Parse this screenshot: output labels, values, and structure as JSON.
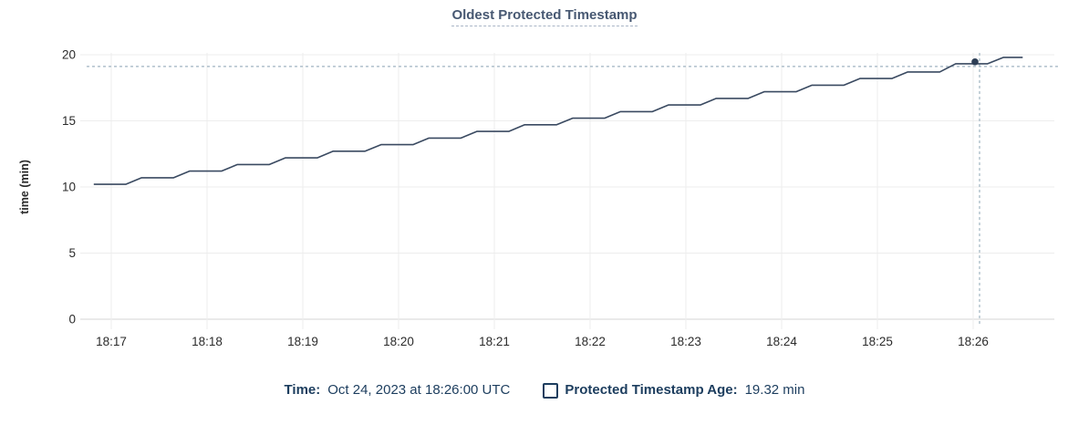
{
  "title": "Oldest Protected Timestamp",
  "tooltip": {
    "time_label": "Time:",
    "time_value": "Oct 24, 2023 at 18:26:00 UTC",
    "series_label": "Protected Timestamp Age:",
    "series_value": "19.32 min"
  },
  "colors": {
    "title": "#475872",
    "legend_text": "#1c3d5e",
    "line": "#3a4a61",
    "dot": "#2d3e55",
    "crosshair": "#9fb3c0",
    "grid": "#ededed",
    "axis": "#d6d6d6",
    "tick_text": "#2b2b2b",
    "axis_title_text": "#111111"
  },
  "chart_data": {
    "type": "line",
    "title": "Oldest Protected Timestamp",
    "xlabel": "",
    "ylabel": "time (min)",
    "ylim": [
      0,
      20
    ],
    "yticks": [
      0,
      5,
      10,
      15,
      20
    ],
    "xticks": [
      "18:17",
      "18:18",
      "18:19",
      "18:20",
      "18:21",
      "18:22",
      "18:23",
      "18:24",
      "18:25",
      "18:26"
    ],
    "x_range": [
      "18:16:41",
      "18:26:51"
    ],
    "grid": true,
    "legend_position": "bottom",
    "series": [
      {
        "name": "Protected Timestamp Age",
        "unit": "min",
        "points": [
          [
            "18:16:49",
            10.2
          ],
          [
            "18:17:09",
            10.2
          ],
          [
            "18:17:19",
            10.7
          ],
          [
            "18:17:39",
            10.7
          ],
          [
            "18:17:49",
            11.2
          ],
          [
            "18:18:09",
            11.2
          ],
          [
            "18:18:19",
            11.7
          ],
          [
            "18:18:39",
            11.7
          ],
          [
            "18:18:49",
            12.2
          ],
          [
            "18:19:09",
            12.2
          ],
          [
            "18:19:19",
            12.7
          ],
          [
            "18:19:39",
            12.7
          ],
          [
            "18:19:49",
            13.2
          ],
          [
            "18:20:09",
            13.2
          ],
          [
            "18:20:19",
            13.7
          ],
          [
            "18:20:39",
            13.7
          ],
          [
            "18:20:49",
            14.2
          ],
          [
            "18:21:09",
            14.2
          ],
          [
            "18:21:19",
            14.7
          ],
          [
            "18:21:39",
            14.7
          ],
          [
            "18:21:49",
            15.2
          ],
          [
            "18:22:09",
            15.2
          ],
          [
            "18:22:19",
            15.7
          ],
          [
            "18:22:39",
            15.7
          ],
          [
            "18:22:49",
            16.2
          ],
          [
            "18:23:09",
            16.2
          ],
          [
            "18:23:19",
            16.7
          ],
          [
            "18:23:39",
            16.7
          ],
          [
            "18:23:49",
            17.2
          ],
          [
            "18:24:09",
            17.2
          ],
          [
            "18:24:19",
            17.7
          ],
          [
            "18:24:39",
            17.7
          ],
          [
            "18:24:49",
            18.2
          ],
          [
            "18:25:09",
            18.2
          ],
          [
            "18:25:19",
            18.7
          ],
          [
            "18:25:39",
            18.7
          ],
          [
            "18:25:49",
            19.32
          ],
          [
            "18:26:09",
            19.32
          ],
          [
            "18:26:19",
            19.8
          ],
          [
            "18:26:31",
            19.8
          ]
        ]
      }
    ],
    "hover": {
      "time": "18:26:00",
      "value": 19.32,
      "date_label": "Oct 24, 2023 at 18:26:00 UTC",
      "value_label": "19.32 min"
    }
  }
}
